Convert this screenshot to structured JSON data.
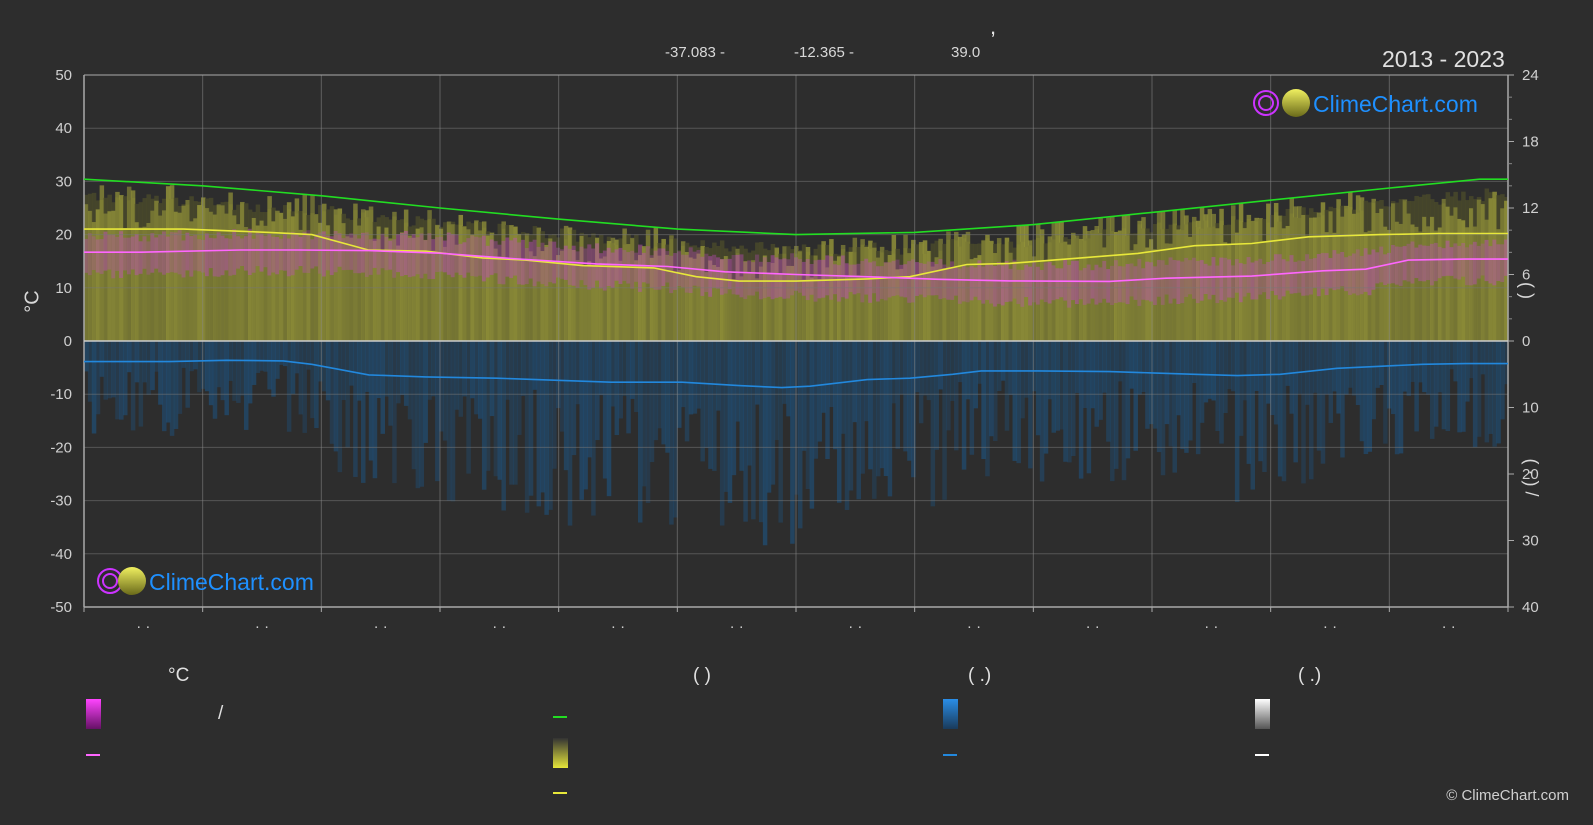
{
  "page": {
    "title": ",",
    "coords": {
      "lat": "-37.083 -",
      "lon": "-12.365 -",
      "elev": "39.0"
    },
    "period": "2013 - 2023",
    "brand": "ClimeChart.com",
    "copyright": "© ClimeChart.com"
  },
  "colors": {
    "background": "#2d2d2d",
    "daylight": "#22dd22",
    "sunshine": "#e8e83a",
    "temp_mean": "#ff66ff",
    "temp_range": "#dd22dd",
    "precip": "#2288dd",
    "snow": "#ffffff",
    "brand": "#1e90ff"
  },
  "legend": {
    "temp_header": "°C",
    "sun_header": "(          )",
    "rain_header": "(   .)",
    "snow_header": "(   .)",
    "temp_range_sep": "/"
  },
  "chart_data": {
    "type": "line",
    "x_labels": [
      "· ·",
      "· ·",
      "· ·",
      "· ·",
      "· ·",
      "· ·",
      "· ·",
      "· ·",
      "· ·",
      "· ·",
      "· ·",
      "· ·"
    ],
    "ylabel_left": "°C",
    "ylabel_right_top": "(       )",
    "ylabel_right_bottom": "(  ·  )  /",
    "ylim_left": [
      -50,
      50
    ],
    "yticks_left": [
      50,
      40,
      30,
      20,
      10,
      0,
      -10,
      -20,
      -30,
      -40,
      -50
    ],
    "right_top_ticks": [
      24,
      18,
      12,
      6,
      0
    ],
    "right_top_lim": [
      0,
      24
    ],
    "right_bottom_ticks": [
      10,
      20,
      30,
      40
    ],
    "right_bottom_lim": [
      0,
      40
    ],
    "grid": true,
    "series": [
      {
        "key": "daylight",
        "axis": "right_top",
        "points": [
          [
            0,
            14.6
          ],
          [
            0.083,
            14.0
          ],
          [
            0.167,
            13.1
          ],
          [
            0.25,
            12.0
          ],
          [
            0.333,
            11.0
          ],
          [
            0.417,
            10.1
          ],
          [
            0.5,
            9.6
          ],
          [
            0.583,
            9.8
          ],
          [
            0.667,
            10.5
          ],
          [
            0.75,
            11.6
          ],
          [
            0.833,
            12.7
          ],
          [
            0.917,
            13.8
          ],
          [
            0.98,
            14.6
          ],
          [
            1.0,
            14.6
          ]
        ]
      },
      {
        "key": "sunshine",
        "axis": "right_top",
        "points": [
          [
            0,
            10.1
          ],
          [
            0.07,
            10.1
          ],
          [
            0.13,
            9.8
          ],
          [
            0.16,
            9.6
          ],
          [
            0.2,
            8.2
          ],
          [
            0.24,
            8.1
          ],
          [
            0.28,
            7.5
          ],
          [
            0.31,
            7.3
          ],
          [
            0.35,
            6.8
          ],
          [
            0.4,
            6.6
          ],
          [
            0.43,
            5.8
          ],
          [
            0.46,
            5.4
          ],
          [
            0.5,
            5.4
          ],
          [
            0.55,
            5.6
          ],
          [
            0.58,
            5.8
          ],
          [
            0.62,
            6.9
          ],
          [
            0.65,
            7.0
          ],
          [
            0.7,
            7.5
          ],
          [
            0.74,
            7.9
          ],
          [
            0.78,
            8.6
          ],
          [
            0.82,
            8.8
          ],
          [
            0.86,
            9.4
          ],
          [
            0.91,
            9.6
          ],
          [
            0.95,
            9.7
          ],
          [
            1.0,
            9.7
          ]
        ]
      },
      {
        "key": "temp_mean",
        "axis": "left",
        "points": [
          [
            0,
            16.7
          ],
          [
            0.04,
            16.7
          ],
          [
            0.11,
            17.1
          ],
          [
            0.15,
            17.1
          ],
          [
            0.2,
            17.0
          ],
          [
            0.25,
            16.5
          ],
          [
            0.3,
            15.5
          ],
          [
            0.36,
            14.5
          ],
          [
            0.41,
            14.0
          ],
          [
            0.45,
            13.0
          ],
          [
            0.5,
            12.5
          ],
          [
            0.56,
            12.0
          ],
          [
            0.6,
            11.6
          ],
          [
            0.65,
            11.3
          ],
          [
            0.72,
            11.2
          ],
          [
            0.76,
            11.8
          ],
          [
            0.82,
            12.2
          ],
          [
            0.87,
            13.2
          ],
          [
            0.9,
            13.5
          ],
          [
            0.93,
            15.2
          ],
          [
            0.97,
            15.4
          ],
          [
            1.0,
            15.4
          ]
        ]
      },
      {
        "key": "precip",
        "axis": "right_bottom",
        "points": [
          [
            0,
            3.1
          ],
          [
            0.06,
            3.1
          ],
          [
            0.1,
            2.9
          ],
          [
            0.14,
            3.0
          ],
          [
            0.16,
            3.5
          ],
          [
            0.2,
            5.1
          ],
          [
            0.24,
            5.4
          ],
          [
            0.29,
            5.6
          ],
          [
            0.33,
            5.9
          ],
          [
            0.37,
            6.2
          ],
          [
            0.42,
            6.2
          ],
          [
            0.46,
            6.7
          ],
          [
            0.49,
            7.0
          ],
          [
            0.51,
            6.8
          ],
          [
            0.55,
            5.8
          ],
          [
            0.58,
            5.6
          ],
          [
            0.61,
            5.0
          ],
          [
            0.63,
            4.5
          ],
          [
            0.67,
            4.5
          ],
          [
            0.72,
            4.6
          ],
          [
            0.75,
            4.8
          ],
          [
            0.78,
            5.0
          ],
          [
            0.81,
            5.2
          ],
          [
            0.84,
            5.0
          ],
          [
            0.88,
            4.1
          ],
          [
            0.91,
            3.8
          ],
          [
            0.94,
            3.5
          ],
          [
            0.97,
            3.4
          ],
          [
            1.0,
            3.4
          ]
        ]
      }
    ]
  }
}
